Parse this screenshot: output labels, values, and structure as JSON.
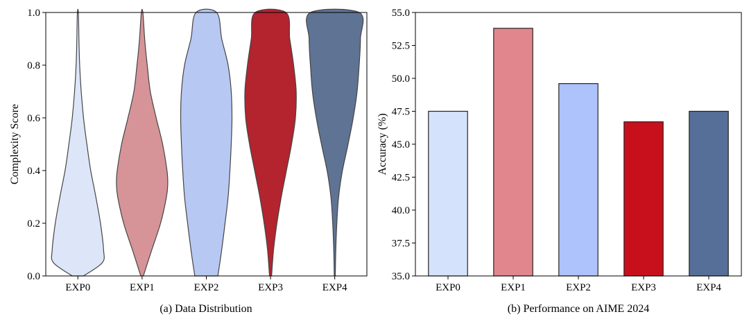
{
  "chart_data": [
    {
      "type": "violin",
      "caption": "(a) Data Distribution",
      "ylabel": "Complexity Score",
      "xlabel": "",
      "ylim": [
        0,
        1
      ],
      "yticks": [
        "0.0",
        "0.2",
        "0.4",
        "0.6",
        "0.8",
        "1.0"
      ],
      "categories": [
        "EXP0",
        "EXP1",
        "EXP2",
        "EXP3",
        "EXP4"
      ],
      "colors": [
        "#dce6f8",
        "#d69498",
        "#b7c8f2",
        "#b3242f",
        "#5f7394"
      ],
      "profiles": [
        {
          "name": "EXP0",
          "y": [
            0.0,
            0.05,
            0.1,
            0.2,
            0.3,
            0.4,
            0.5,
            0.6,
            0.7,
            0.8,
            0.9,
            1.0
          ],
          "width": [
            0.22,
            0.95,
            1.0,
            0.88,
            0.7,
            0.5,
            0.35,
            0.22,
            0.13,
            0.07,
            0.04,
            0.02
          ]
        },
        {
          "name": "EXP1",
          "y": [
            0.0,
            0.1,
            0.2,
            0.3,
            0.35,
            0.4,
            0.5,
            0.6,
            0.7,
            0.8,
            0.9,
            1.0
          ],
          "width": [
            0.05,
            0.38,
            0.72,
            0.95,
            1.0,
            0.97,
            0.8,
            0.55,
            0.32,
            0.2,
            0.1,
            0.03
          ]
        },
        {
          "name": "EXP2",
          "y": [
            0.0,
            0.1,
            0.2,
            0.3,
            0.4,
            0.5,
            0.6,
            0.7,
            0.8,
            0.9,
            1.0
          ],
          "width": [
            0.45,
            0.6,
            0.73,
            0.85,
            0.92,
            0.97,
            1.0,
            0.97,
            0.85,
            0.6,
            0.4
          ]
        },
        {
          "name": "EXP3",
          "y": [
            0.0,
            0.1,
            0.2,
            0.3,
            0.4,
            0.5,
            0.6,
            0.7,
            0.8,
            0.9,
            1.0
          ],
          "width": [
            0.04,
            0.12,
            0.25,
            0.42,
            0.62,
            0.82,
            0.97,
            1.0,
            0.9,
            0.75,
            0.6
          ]
        },
        {
          "name": "EXP4",
          "y": [
            0.0,
            0.1,
            0.2,
            0.3,
            0.4,
            0.5,
            0.6,
            0.7,
            0.8,
            0.9,
            1.0
          ],
          "width": [
            0.02,
            0.04,
            0.08,
            0.15,
            0.3,
            0.52,
            0.72,
            0.87,
            0.95,
            1.0,
            0.95
          ]
        }
      ]
    },
    {
      "type": "bar",
      "caption": "(b) Performance on AIME 2024",
      "ylabel": "Accuracy (%)",
      "xlabel": "",
      "ylim": [
        35,
        55
      ],
      "yticks": [
        "35.0",
        "37.5",
        "40.0",
        "42.5",
        "45.0",
        "47.5",
        "50.0",
        "52.5",
        "55.0"
      ],
      "categories": [
        "EXP0",
        "EXP1",
        "EXP2",
        "EXP3",
        "EXP4"
      ],
      "values": [
        47.5,
        53.8,
        49.6,
        46.7,
        47.5
      ],
      "colors": [
        "#d5e2fb",
        "#e2868d",
        "#aec2fb",
        "#c8101c",
        "#566f98"
      ]
    }
  ]
}
